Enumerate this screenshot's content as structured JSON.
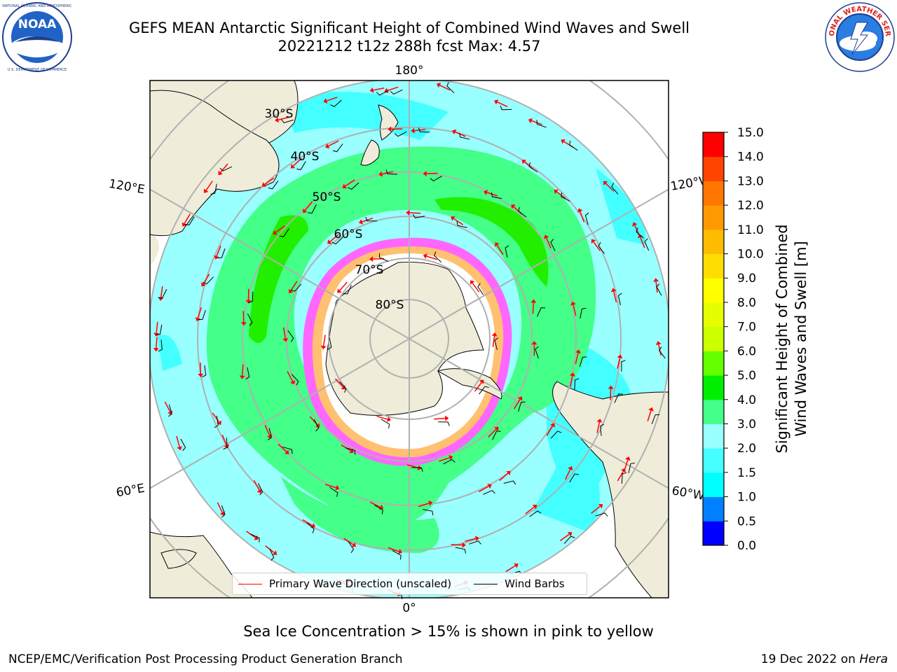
{
  "header": {
    "title_line1": "GEFS MEAN Antarctic Significant Height of Combined Wind Waves and Swell",
    "title_line2": "20221212 t12z 288h fcst   Max: 4.57"
  },
  "logos": {
    "left": {
      "icon": "noaa-logo",
      "text": "NOAA",
      "ring_text": "NATIONAL OCEANIC AND ATMOSPHERIC ADMINISTRATION · U.S. DEPARTMENT OF COMMERCE"
    },
    "right": {
      "icon": "nws-logo",
      "ring_text": "NATIONAL WEATHER SERVICE"
    }
  },
  "map": {
    "projection": "south-polar-stereographic",
    "longitude_labels": {
      "top": "180°",
      "bottom": "0°",
      "upper_left": "120°E",
      "lower_left": "60°E",
      "upper_right": "120°W",
      "lower_right": "60°W"
    },
    "latitude_labels": [
      "30°S",
      "40°S",
      "50°S",
      "60°S",
      "70°S",
      "80°S"
    ],
    "colors": {
      "land": "#efedda",
      "ocean_low": "#99ffff",
      "ocean_mid": "#44ff88",
      "ocean_high": "#22ee00",
      "ice": "#ffffff",
      "ice_edge": "#ff66ff",
      "graticule": "#b0b0b0"
    }
  },
  "legend": {
    "items": [
      {
        "label": "Primary Wave Direction (unscaled)",
        "color": "#ff0000"
      },
      {
        "label": "Wind Barbs",
        "color": "#000000"
      }
    ]
  },
  "colorbar": {
    "label_line1": "Significant Height of Combined",
    "label_line2": "Wind Waves and Swell [m]",
    "ticks": [
      "0.0",
      "0.5",
      "1.0",
      "1.5",
      "2.0",
      "3.0",
      "4.0",
      "5.0",
      "6.0",
      "7.0",
      "8.0",
      "9.0",
      "10.0",
      "11.0",
      "12.0",
      "13.0",
      "14.0",
      "15.0"
    ],
    "colors": [
      "#0000ff",
      "#0080ff",
      "#00ffff",
      "#44ffff",
      "#99ffff",
      "#44ff88",
      "#00ee00",
      "#66ff00",
      "#ccff00",
      "#e6ff00",
      "#ffff00",
      "#ffdd00",
      "#ffbb00",
      "#ff9900",
      "#ff7700",
      "#ff4400",
      "#ff0000"
    ]
  },
  "chart_data": {
    "type": "heatmap",
    "variable": "Significant Height of Combined Wind Waves and Swell",
    "units": "m",
    "max_value": 4.57,
    "color_levels": [
      0.0,
      0.5,
      1.0,
      1.5,
      2.0,
      3.0,
      4.0,
      5.0,
      6.0,
      7.0,
      8.0,
      9.0,
      10.0,
      11.0,
      12.0,
      13.0,
      14.0,
      15.0
    ]
  },
  "caption": "Sea Ice Concentration > 15% is shown in pink to yellow",
  "footer": {
    "credit": "NCEP/EMC/Verification Post Processing Product Generation Branch",
    "date": "19 Dec 2022 on ",
    "host": "Hera"
  }
}
